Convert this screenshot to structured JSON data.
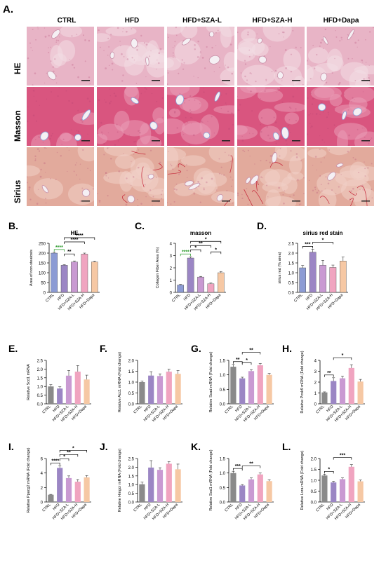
{
  "figure": {
    "panel_a": "A.",
    "columns": [
      "CTRL",
      "HFD",
      "HFD+SZA-L",
      "HFD+SZA-H",
      "HFD+Dapa"
    ],
    "rows": [
      "HE",
      "Masson",
      "Sirius"
    ],
    "colors": {
      "he_bg": "#e8b4c6",
      "he_pale": "#f3dde4",
      "masson_bg": "#d9557f",
      "masson_pale": "#ea9db7",
      "sirius_bg": "#e2aa9c",
      "sirius_pale": "#f0cfc6",
      "red_line": "#c0142b",
      "vessel": "#f5f0f4",
      "blue_fiber": "#8a9fd6"
    }
  },
  "chart_data": [
    {
      "id": "B",
      "letter": "B.",
      "type": "bar",
      "title": "HE",
      "ylabel": "Area of non-steatosis",
      "ylim": [
        0,
        250
      ],
      "yticks": [
        0,
        50,
        100,
        150,
        200,
        250
      ],
      "values": [
        200,
        138,
        155,
        195,
        155
      ],
      "errors": [
        4,
        3,
        5,
        5,
        4
      ],
      "sig": [
        {
          "a": 0,
          "b": 1,
          "label": "****",
          "color": "#2a9a2a"
        },
        {
          "a": 1,
          "b": 2,
          "label": "**",
          "color": "#000"
        },
        {
          "a": 1,
          "b": 3,
          "label": "****",
          "color": "#000"
        },
        {
          "a": 1,
          "b": 4,
          "label": "****",
          "color": "#000"
        }
      ]
    },
    {
      "id": "C",
      "letter": "C.",
      "type": "bar",
      "title": "masson",
      "ylabel": "Collagen Fiber Area (%)",
      "ylim": [
        0,
        4
      ],
      "yticks": [
        0,
        1,
        2,
        3,
        4
      ],
      "values": [
        0.6,
        2.8,
        1.25,
        0.7,
        1.6
      ],
      "errors": [
        0.05,
        0.1,
        0.05,
        0.06,
        0.1
      ],
      "sig": [
        {
          "a": 0,
          "b": 1,
          "label": "****",
          "color": "#2a9a2a"
        },
        {
          "a": 1,
          "b": 2,
          "label": "*",
          "color": "#000"
        },
        {
          "a": 1,
          "b": 3,
          "label": "**",
          "color": "#000"
        },
        {
          "a": 1,
          "b": 4,
          "label": "*",
          "color": "#000"
        },
        {
          "a": 3,
          "b": 4,
          "label": "*",
          "color": "#000"
        }
      ]
    },
    {
      "id": "D",
      "letter": "D.",
      "type": "bar",
      "title": "sirius red stain",
      "ylabel": "sirius red (% area)",
      "ylim": [
        0,
        2.5
      ],
      "yticks": [
        0.0,
        0.5,
        1.0,
        1.5,
        2.0,
        2.5
      ],
      "values": [
        1.25,
        2.05,
        1.38,
        1.27,
        1.6
      ],
      "errors": [
        0.12,
        0.15,
        0.25,
        0.12,
        0.2
      ],
      "sig": [
        {
          "a": 0,
          "b": 1,
          "label": "***",
          "color": "#000"
        },
        {
          "a": 1,
          "b": 3,
          "label": "*",
          "color": "#000"
        }
      ]
    },
    {
      "id": "E",
      "letter": "E.",
      "type": "bar",
      "title": "",
      "ylabel": "Relative Scd1 mRNA",
      "ylim": [
        0,
        2.5
      ],
      "yticks": [
        0.0,
        0.5,
        1.0,
        1.5,
        2.0,
        2.5
      ],
      "values": [
        1.0,
        0.88,
        1.62,
        1.85,
        1.4
      ],
      "errors": [
        0.1,
        0.1,
        0.3,
        0.35,
        0.25
      ],
      "sig": []
    },
    {
      "id": "F",
      "letter": "F.",
      "type": "bar",
      "title": "",
      "ylabel": "Relative Acc1 mRNA (Fold change)",
      "ylim": [
        0,
        2.0
      ],
      "yticks": [
        0.0,
        0.5,
        1.0,
        1.5,
        2.0
      ],
      "values": [
        1.0,
        1.3,
        1.28,
        1.48,
        1.38
      ],
      "errors": [
        0.05,
        0.18,
        0.1,
        0.12,
        0.15
      ],
      "sig": []
    },
    {
      "id": "G",
      "letter": "G.",
      "type": "bar",
      "title": "",
      "ylabel": "Relative Scad mRNA (Fold change)",
      "ylim": [
        0,
        1.5
      ],
      "yticks": [
        0.0,
        0.5,
        1.0,
        1.5
      ],
      "values": [
        1.28,
        0.88,
        1.13,
        1.33,
        1.0
      ],
      "errors": [
        0.08,
        0.04,
        0.05,
        0.06,
        0.05
      ],
      "sig": [
        {
          "a": 0,
          "b": 1,
          "label": "**",
          "color": "#000"
        },
        {
          "a": 1,
          "b": 2,
          "label": "*",
          "color": "#000"
        },
        {
          "a": 1,
          "b": 3,
          "label": "**",
          "color": "#000"
        }
      ]
    },
    {
      "id": "H",
      "letter": "H.",
      "type": "bar",
      "title": "",
      "ylabel": "Relative Pcsk9 mRNA (Fold change)",
      "ylim": [
        0,
        4
      ],
      "yticks": [
        0,
        1,
        2,
        3,
        4
      ],
      "values": [
        1.05,
        2.1,
        2.35,
        3.3,
        2.05
      ],
      "errors": [
        0.05,
        0.3,
        0.2,
        0.3,
        0.2
      ],
      "sig": [
        {
          "a": 0,
          "b": 1,
          "label": "**",
          "color": "#000"
        },
        {
          "a": 1,
          "b": 3,
          "label": "*",
          "color": "#000"
        }
      ]
    },
    {
      "id": "I",
      "letter": "I.",
      "type": "bar",
      "title": "",
      "ylabel": "Relative Ppacg2 mRNA (Fold change)",
      "ylim": [
        0,
        6
      ],
      "yticks": [
        0,
        2,
        4,
        6
      ],
      "values": [
        1.0,
        4.7,
        3.3,
        2.8,
        3.4
      ],
      "errors": [
        0.05,
        0.3,
        0.3,
        0.3,
        0.25
      ],
      "sig": [
        {
          "a": 0,
          "b": 1,
          "label": "****",
          "color": "#000"
        },
        {
          "a": 1,
          "b": 2,
          "label": "*",
          "color": "#000"
        },
        {
          "a": 1,
          "b": 3,
          "label": "**",
          "color": "#000"
        },
        {
          "a": 1,
          "b": 4,
          "label": "*",
          "color": "#000"
        }
      ]
    },
    {
      "id": "J",
      "letter": "J.",
      "type": "bar",
      "title": "",
      "ylabel": "Relative Hmgcr mRNA (Fold change)",
      "ylim": [
        0,
        2.5
      ],
      "yticks": [
        0.0,
        0.5,
        1.0,
        1.5,
        2.0,
        2.5
      ],
      "values": [
        1.02,
        1.98,
        1.85,
        2.2,
        1.88
      ],
      "errors": [
        0.12,
        0.4,
        0.12,
        0.12,
        0.3
      ],
      "sig": []
    },
    {
      "id": "K",
      "letter": "K.",
      "type": "bar",
      "title": "",
      "ylabel": "Relative Sod1 mRNA (Fold change)",
      "ylim": [
        0,
        1.5
      ],
      "yticks": [
        0.0,
        0.5,
        1.0,
        1.5
      ],
      "values": [
        1.0,
        0.57,
        0.78,
        0.95,
        0.72
      ],
      "errors": [
        0.06,
        0.03,
        0.05,
        0.05,
        0.05
      ],
      "sig": [
        {
          "a": 0,
          "b": 1,
          "label": "***",
          "color": "#000"
        },
        {
          "a": 1,
          "b": 3,
          "label": "**",
          "color": "#000"
        }
      ]
    },
    {
      "id": "L",
      "letter": "L.",
      "type": "bar",
      "title": "",
      "ylabel": "Relative Lxra mRNA (Fold change)",
      "ylim": [
        0,
        2.0
      ],
      "yticks": [
        0.0,
        0.5,
        1.0,
        1.5,
        2.0
      ],
      "values": [
        1.22,
        0.9,
        1.05,
        1.62,
        0.95
      ],
      "errors": [
        0.06,
        0.05,
        0.06,
        0.1,
        0.06
      ],
      "sig": [
        {
          "a": 0,
          "b": 1,
          "label": "*",
          "color": "#000"
        },
        {
          "a": 1,
          "b": 3,
          "label": "***",
          "color": "#000"
        }
      ]
    }
  ],
  "categories": [
    "CTRL",
    "HFD",
    "HFD+SZA-L",
    "HFD+SZA-H",
    "HFD+Dapa"
  ],
  "bar_colors": [
    "#8a8a8a",
    "#9b86c4",
    "#c99ad2",
    "#f0a4c0",
    "#f6c8a4"
  ],
  "bar_colors_top": [
    "#8c9bd4",
    "#9b86c4",
    "#c99ad2",
    "#f0a4c0",
    "#f6c8a4"
  ]
}
